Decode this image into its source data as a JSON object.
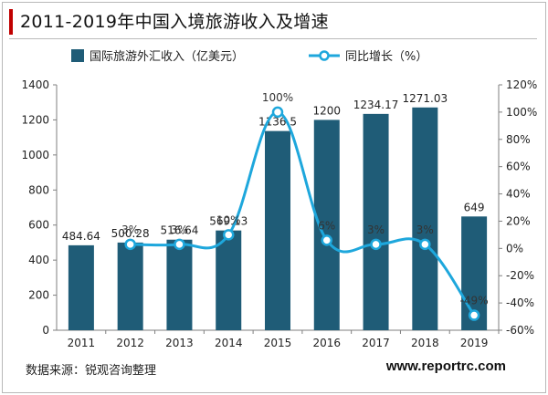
{
  "title": "2011-2019年中国入境旅游收入及增速",
  "source": "数据来源：锐观咨询整理",
  "site": "www.reportrc.com",
  "colors": {
    "bar": "#1f5c77",
    "line": "#1ea7dc",
    "accent": "#c00000"
  },
  "chart_data": {
    "type": "bar",
    "categories": [
      "2011",
      "2012",
      "2013",
      "2014",
      "2015",
      "2016",
      "2017",
      "2018",
      "2019"
    ],
    "series": [
      {
        "name": "国际旅游外汇收入（亿美元）",
        "type": "bar",
        "axis": "left",
        "values": [
          484.64,
          500.28,
          516.64,
          569.13,
          1136.5,
          1200,
          1234.17,
          1271.03,
          649
        ],
        "labels": [
          "484.64",
          "500.28",
          "516.64",
          "569.13",
          "1136.5",
          "1200",
          "1234.17",
          "1271.03",
          "649"
        ]
      },
      {
        "name": "同比增长（%）",
        "type": "line",
        "axis": "right",
        "values": [
          null,
          3,
          3,
          10,
          100,
          6,
          3,
          3,
          -49
        ],
        "labels": [
          "",
          "3%",
          "3%",
          "10%",
          "100%",
          "6%",
          "3%",
          "3%",
          "-49%"
        ]
      }
    ],
    "y_left": {
      "min": 0,
      "max": 1400,
      "step": 200,
      "ticks": [
        "0",
        "200",
        "400",
        "600",
        "800",
        "1000",
        "1200",
        "1400"
      ]
    },
    "y_right": {
      "min": -60,
      "max": 120,
      "step": 20,
      "ticks": [
        "-60%",
        "-40%",
        "-20%",
        "0%",
        "20%",
        "40%",
        "60%",
        "80%",
        "100%",
        "120%"
      ]
    },
    "legend_position": "top",
    "grid": false
  }
}
